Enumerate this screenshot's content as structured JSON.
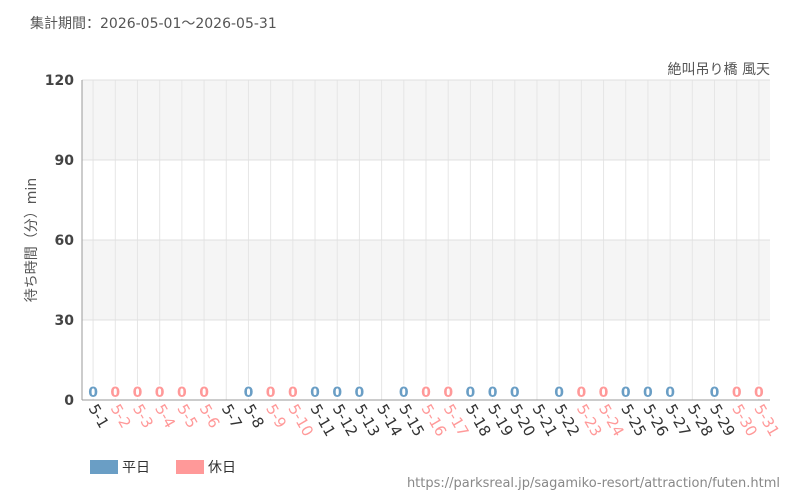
{
  "chart_data": {
    "type": "bar",
    "title": "集計期間：2026-05-01〜2026-05-31",
    "subtitle": "絶叫吊り橋 風天",
    "y_label": "待ち時間（分）min",
    "footer": "https://parksreal.jp/sagamiko-resort/attraction/futen.html",
    "categories": [
      "5-1",
      "5-2",
      "5-3",
      "5-4",
      "5-5",
      "5-6",
      "5-7",
      "5-8",
      "5-9",
      "5-10",
      "5-11",
      "5-12",
      "5-13",
      "5-14",
      "5-15",
      "5-16",
      "5-17",
      "5-18",
      "5-19",
      "5-20",
      "5-21",
      "5-22",
      "5-23",
      "5-24",
      "5-25",
      "5-26",
      "5-27",
      "5-28",
      "5-29",
      "5-30",
      "5-31"
    ],
    "series": [
      {
        "name": "平日",
        "color": "#6a9ec5",
        "values": [
          0,
          null,
          null,
          null,
          null,
          null,
          null,
          0,
          null,
          null,
          0,
          0,
          0,
          null,
          0,
          null,
          null,
          0,
          0,
          0,
          null,
          0,
          null,
          null,
          0,
          0,
          0,
          null,
          0,
          null,
          null
        ]
      },
      {
        "name": "休日",
        "color": "#ff9999",
        "values": [
          null,
          0,
          0,
          0,
          0,
          0,
          null,
          null,
          0,
          0,
          null,
          null,
          null,
          null,
          null,
          0,
          0,
          null,
          null,
          null,
          null,
          null,
          0,
          0,
          null,
          null,
          null,
          null,
          null,
          0,
          0
        ]
      }
    ],
    "ylim": [
      0,
      120
    ],
    "yticks": [
      0,
      30,
      60,
      90,
      120
    ],
    "grid": true
  }
}
